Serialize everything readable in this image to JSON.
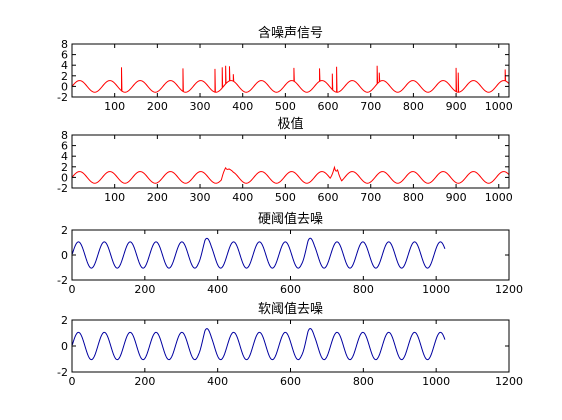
{
  "figure": {
    "background": "#ffffff"
  },
  "chart_data": [
    {
      "type": "line",
      "title": "含噪声信号",
      "xlim": [
        0,
        1024
      ],
      "ylim": [
        -2,
        8
      ],
      "xticks": [
        100,
        200,
        300,
        400,
        500,
        600,
        700,
        800,
        900,
        1000
      ],
      "yticks": [
        -2,
        0,
        2,
        4,
        6,
        8
      ],
      "line_color": "#ff0000",
      "series": [
        {
          "kind": "sine_with_spikes",
          "amplitude": 1.1,
          "period": 71,
          "phase_x": 0,
          "spikes": [
            [
              116,
              3.6
            ],
            [
              260,
              3.4
            ],
            [
              335,
              3.3
            ],
            [
              352,
              3.6
            ],
            [
              360,
              3.9
            ],
            [
              369,
              3.8
            ],
            [
              378,
              2.3
            ],
            [
              520,
              3.5
            ],
            [
              580,
              3.4
            ],
            [
              610,
              2.4
            ],
            [
              620,
              3.7
            ],
            [
              715,
              3.9
            ],
            [
              720,
              2.6
            ],
            [
              900,
              3.5
            ],
            [
              905,
              2.6
            ],
            [
              1015,
              3.2
            ]
          ]
        }
      ]
    },
    {
      "type": "line",
      "title": "极值",
      "xlim": [
        0,
        1024
      ],
      "ylim": [
        -2,
        8
      ],
      "xticks": [
        100,
        200,
        300,
        400,
        500,
        600,
        700,
        800,
        900,
        1000
      ],
      "yticks": [
        -2,
        0,
        2,
        4,
        6,
        8
      ],
      "line_color": "#ff0000",
      "series": [
        {
          "kind": "sine_with_bumps",
          "amplitude": 1.1,
          "period": 71,
          "phase_x": 0,
          "bumps": [
            [
              360,
              1.8
            ],
            [
              368,
              1.6
            ],
            [
              615,
              1.9
            ],
            [
              622,
              1.4
            ]
          ]
        }
      ]
    },
    {
      "type": "line",
      "title": "硬阈值去噪",
      "xlim": [
        0,
        1200
      ],
      "ylim": [
        -2,
        2
      ],
      "xticks": [
        0,
        200,
        400,
        600,
        800,
        1000,
        1200
      ],
      "yticks": [
        -2,
        0,
        2
      ],
      "line_color": "#0000a0",
      "series": [
        {
          "kind": "sine",
          "amplitude": 1.05,
          "period": 71,
          "phase_x": 0,
          "x_end": 1024,
          "peaks": [
            [
              365,
              1.5
            ],
            [
              648,
              1.55
            ]
          ]
        }
      ]
    },
    {
      "type": "line",
      "title": "软阈值去噪",
      "xlim": [
        0,
        1200
      ],
      "ylim": [
        -2,
        2
      ],
      "xticks": [
        0,
        200,
        400,
        600,
        800,
        1000,
        1200
      ],
      "yticks": [
        -2,
        0,
        2
      ],
      "line_color": "#0000a0",
      "series": [
        {
          "kind": "sine",
          "amplitude": 1.05,
          "period": 71,
          "phase_x": 0,
          "x_end": 1024,
          "peaks": [
            [
              365,
              1.5
            ],
            [
              648,
              1.55
            ]
          ]
        }
      ]
    }
  ]
}
